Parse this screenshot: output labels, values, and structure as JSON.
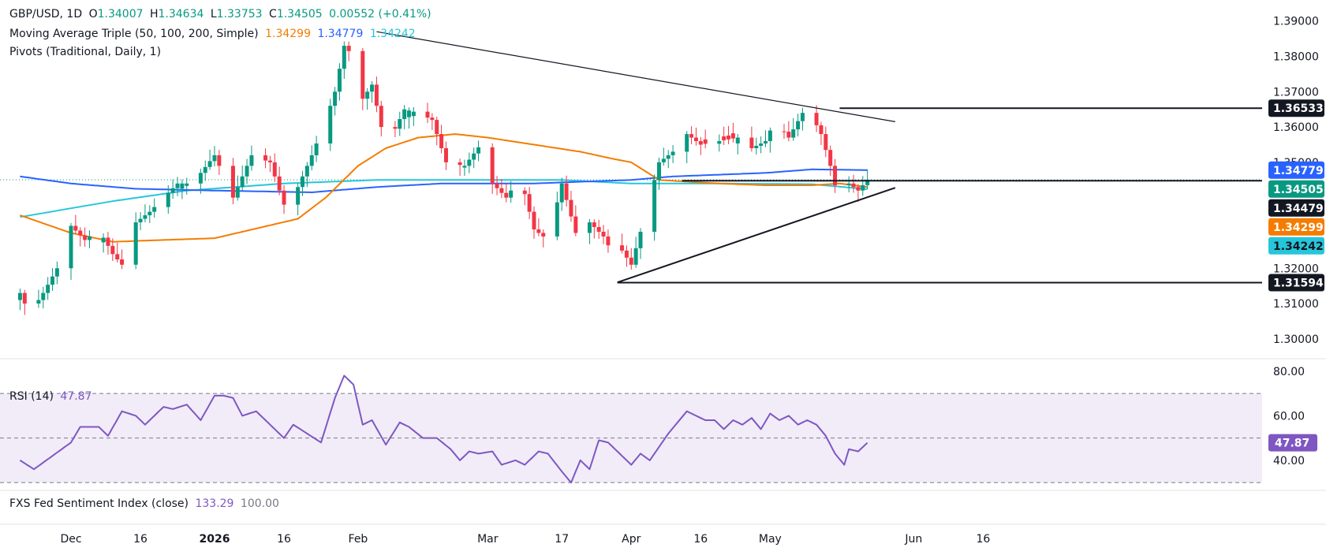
{
  "header": {
    "symbol": "GBP/USD, 1D",
    "open_label": "O",
    "open": "1.34007",
    "high_label": "H",
    "high": "1.34634",
    "low_label": "L",
    "low": "1.33753",
    "close_label": "C",
    "close": "1.34505",
    "change": "0.00552 (+0.41%)"
  },
  "indicators": {
    "ma_title": "Moving Average Triple (50, 100, 200, Simple)",
    "ma50": "1.34299",
    "ma100": "1.34779",
    "ma200": "1.34242",
    "pivots_title": "Pivots (Traditional, Daily, 1)",
    "rsi_title": "RSI (14)",
    "rsi_value": "47.87",
    "fxs_title": "FXS Fed Sentiment Index (close)",
    "fxs_value": "133.29",
    "fxs_base": "100.00"
  },
  "colors": {
    "up": "#089981",
    "down": "#f23645",
    "ma50": "#f57c00",
    "ma100": "#2962ff",
    "ma200": "#26c6da",
    "rsi": "#7e57c2",
    "rsi_band": "#ede7f6",
    "axis_text": "#131722"
  },
  "chart_data": [
    {
      "type": "candlestick",
      "title": "GBP/USD, 1D",
      "y_ticks": [
        "1.39000",
        "1.38000",
        "1.37000",
        "1.36000",
        "1.35000",
        "1.32000",
        "1.31000",
        "1.30000"
      ],
      "y_range": [
        1.2955,
        1.3915
      ],
      "x_ticks": [
        "Dec",
        "16",
        "2026",
        "16",
        "Feb",
        "Mar",
        "17",
        "Apr",
        "16",
        "May",
        "Jun",
        "16"
      ],
      "x_tick_days": [
        0,
        15,
        31,
        46,
        62,
        90,
        106,
        121,
        136,
        151,
        182,
        197
      ],
      "price_labels": [
        {
          "value": "1.36533",
          "style": "dark"
        },
        {
          "value": "1.34779",
          "style": "blue"
        },
        {
          "value": "1.34505",
          "style": "green"
        },
        {
          "value": "1.34479",
          "style": "dark"
        },
        {
          "value": "1.34299",
          "style": "orange"
        },
        {
          "value": "1.34242",
          "style": "cyan"
        },
        {
          "value": "1.31594",
          "style": "dark"
        }
      ],
      "horizontal_levels": [
        {
          "value": 1.36533,
          "from_day": 166
        },
        {
          "value": 1.34479,
          "from_day": 132
        },
        {
          "value": 1.31594,
          "from_day": 118
        }
      ],
      "trendlines": [
        {
          "from": [
            66,
            1.387
          ],
          "to": [
            178,
            1.3615
          ]
        },
        {
          "from": [
            118,
            1.316
          ],
          "to": [
            178,
            1.3428
          ]
        }
      ],
      "current_close": 1.34505,
      "candle_anchors": [
        [
          -11,
          1.313
        ],
        [
          -9,
          1.307
        ],
        [
          -6,
          1.313
        ],
        [
          -3,
          1.32
        ],
        [
          0,
          1.332
        ],
        [
          3,
          1.328
        ],
        [
          6,
          1.331
        ],
        [
          9,
          1.324
        ],
        [
          11,
          1.321
        ],
        [
          14,
          1.333
        ],
        [
          17,
          1.336
        ],
        [
          20,
          1.34
        ],
        [
          23,
          1.344
        ],
        [
          25,
          1.344
        ],
        [
          28,
          1.347
        ],
        [
          31,
          1.352
        ],
        [
          35,
          1.34
        ],
        [
          39,
          1.352
        ],
        [
          43,
          1.35
        ],
        [
          46,
          1.338
        ],
        [
          49,
          1.343
        ],
        [
          52,
          1.352
        ],
        [
          55,
          1.362
        ],
        [
          57,
          1.37
        ],
        [
          59,
          1.383
        ],
        [
          61,
          1.38
        ],
        [
          63,
          1.368
        ],
        [
          65,
          1.372
        ],
        [
          68,
          1.354
        ],
        [
          72,
          1.365
        ],
        [
          75,
          1.364
        ],
        [
          78,
          1.362
        ],
        [
          81,
          1.35
        ],
        [
          85,
          1.349
        ],
        [
          89,
          1.356
        ],
        [
          91,
          1.344
        ],
        [
          94,
          1.34
        ],
        [
          97,
          1.346
        ],
        [
          100,
          1.331
        ],
        [
          103,
          1.328
        ],
        [
          106,
          1.344
        ],
        [
          109,
          1.33
        ],
        [
          112,
          1.333
        ],
        [
          115,
          1.329
        ],
        [
          117,
          1.324
        ],
        [
          119,
          1.325
        ],
        [
          121,
          1.321
        ],
        [
          124,
          1.335
        ],
        [
          127,
          1.35
        ],
        [
          130,
          1.353
        ],
        [
          133,
          1.358
        ],
        [
          136,
          1.355
        ],
        [
          140,
          1.356
        ],
        [
          144,
          1.357
        ],
        [
          147,
          1.354
        ],
        [
          150,
          1.356
        ],
        [
          152,
          1.362
        ],
        [
          155,
          1.357
        ],
        [
          158,
          1.364
        ],
        [
          160,
          1.363
        ],
        [
          162,
          1.358
        ],
        [
          164,
          1.349
        ],
        [
          166,
          1.338
        ],
        [
          168,
          1.344
        ],
        [
          170,
          1.342
        ],
        [
          172,
          1.34505
        ]
      ],
      "ma50_anchors": [
        [
          -11,
          1.335
        ],
        [
          0,
          1.33
        ],
        [
          9,
          1.3275
        ],
        [
          31,
          1.3285
        ],
        [
          49,
          1.334
        ],
        [
          55,
          1.34
        ],
        [
          62,
          1.349
        ],
        [
          68,
          1.354
        ],
        [
          75,
          1.357
        ],
        [
          83,
          1.358
        ],
        [
          90,
          1.357
        ],
        [
          100,
          1.355
        ],
        [
          110,
          1.353
        ],
        [
          117,
          1.351
        ],
        [
          121,
          1.35
        ],
        [
          127,
          1.345
        ],
        [
          140,
          1.344
        ],
        [
          150,
          1.3435
        ],
        [
          160,
          1.3435
        ],
        [
          166,
          1.344
        ],
        [
          172,
          1.343
        ]
      ],
      "ma100_anchors": [
        [
          -11,
          1.346
        ],
        [
          0,
          1.344
        ],
        [
          14,
          1.3425
        ],
        [
          31,
          1.342
        ],
        [
          52,
          1.3415
        ],
        [
          66,
          1.343
        ],
        [
          80,
          1.344
        ],
        [
          100,
          1.344
        ],
        [
          110,
          1.3445
        ],
        [
          121,
          1.345
        ],
        [
          130,
          1.346
        ],
        [
          140,
          1.3465
        ],
        [
          150,
          1.347
        ],
        [
          160,
          1.348
        ],
        [
          172,
          1.3478
        ]
      ],
      "ma200_anchors": [
        [
          -11,
          1.3345
        ],
        [
          9,
          1.339
        ],
        [
          25,
          1.342
        ],
        [
          46,
          1.344
        ],
        [
          66,
          1.345
        ],
        [
          86,
          1.345
        ],
        [
          106,
          1.345
        ],
        [
          121,
          1.344
        ],
        [
          140,
          1.344
        ],
        [
          160,
          1.3438
        ],
        [
          172,
          1.3424
        ]
      ]
    },
    {
      "type": "line",
      "title": "RSI (14)",
      "y_ticks": [
        "80.00",
        "60.00",
        "40.00"
      ],
      "y_range": [
        29,
        81
      ],
      "band": [
        30,
        70
      ],
      "midline": 50,
      "last_value": "47.87",
      "anchors": [
        [
          -11,
          40
        ],
        [
          -8,
          36
        ],
        [
          -4,
          42
        ],
        [
          0,
          48
        ],
        [
          2,
          55
        ],
        [
          6,
          55
        ],
        [
          8,
          51
        ],
        [
          11,
          62
        ],
        [
          14,
          60
        ],
        [
          16,
          56
        ],
        [
          20,
          64
        ],
        [
          22,
          63
        ],
        [
          25,
          65
        ],
        [
          28,
          58
        ],
        [
          31,
          69
        ],
        [
          33,
          69
        ],
        [
          35,
          68
        ],
        [
          37,
          60
        ],
        [
          40,
          62
        ],
        [
          43,
          56
        ],
        [
          46,
          50
        ],
        [
          48,
          56
        ],
        [
          51,
          52
        ],
        [
          54,
          48
        ],
        [
          57,
          68
        ],
        [
          59,
          78
        ],
        [
          61,
          74
        ],
        [
          63,
          56
        ],
        [
          65,
          58
        ],
        [
          68,
          47
        ],
        [
          71,
          57
        ],
        [
          73,
          55
        ],
        [
          76,
          50
        ],
        [
          79,
          50
        ],
        [
          82,
          45
        ],
        [
          84,
          40
        ],
        [
          86,
          44
        ],
        [
          88,
          43
        ],
        [
          91,
          44
        ],
        [
          93,
          38
        ],
        [
          96,
          40
        ],
        [
          98,
          38
        ],
        [
          101,
          44
        ],
        [
          103,
          43
        ],
        [
          106,
          35
        ],
        [
          108,
          30
        ],
        [
          110,
          40
        ],
        [
          112,
          36
        ],
        [
          114,
          49
        ],
        [
          116,
          48
        ],
        [
          118,
          44
        ],
        [
          121,
          38
        ],
        [
          123,
          43
        ],
        [
          125,
          40
        ],
        [
          127,
          46
        ],
        [
          129,
          52
        ],
        [
          131,
          57
        ],
        [
          133,
          62
        ],
        [
          135,
          60
        ],
        [
          137,
          58
        ],
        [
          139,
          58
        ],
        [
          141,
          54
        ],
        [
          143,
          58
        ],
        [
          145,
          56
        ],
        [
          147,
          59
        ],
        [
          149,
          54
        ],
        [
          151,
          61
        ],
        [
          153,
          58
        ],
        [
          155,
          60
        ],
        [
          157,
          56
        ],
        [
          159,
          58
        ],
        [
          161,
          56
        ],
        [
          163,
          51
        ],
        [
          165,
          43
        ],
        [
          167,
          38
        ],
        [
          168,
          45
        ],
        [
          170,
          44
        ],
        [
          172,
          47.87
        ]
      ]
    },
    {
      "type": "line",
      "title": "FXS Fed Sentiment Index (close)",
      "last_value": "133.29",
      "reference": "100.00"
    }
  ]
}
